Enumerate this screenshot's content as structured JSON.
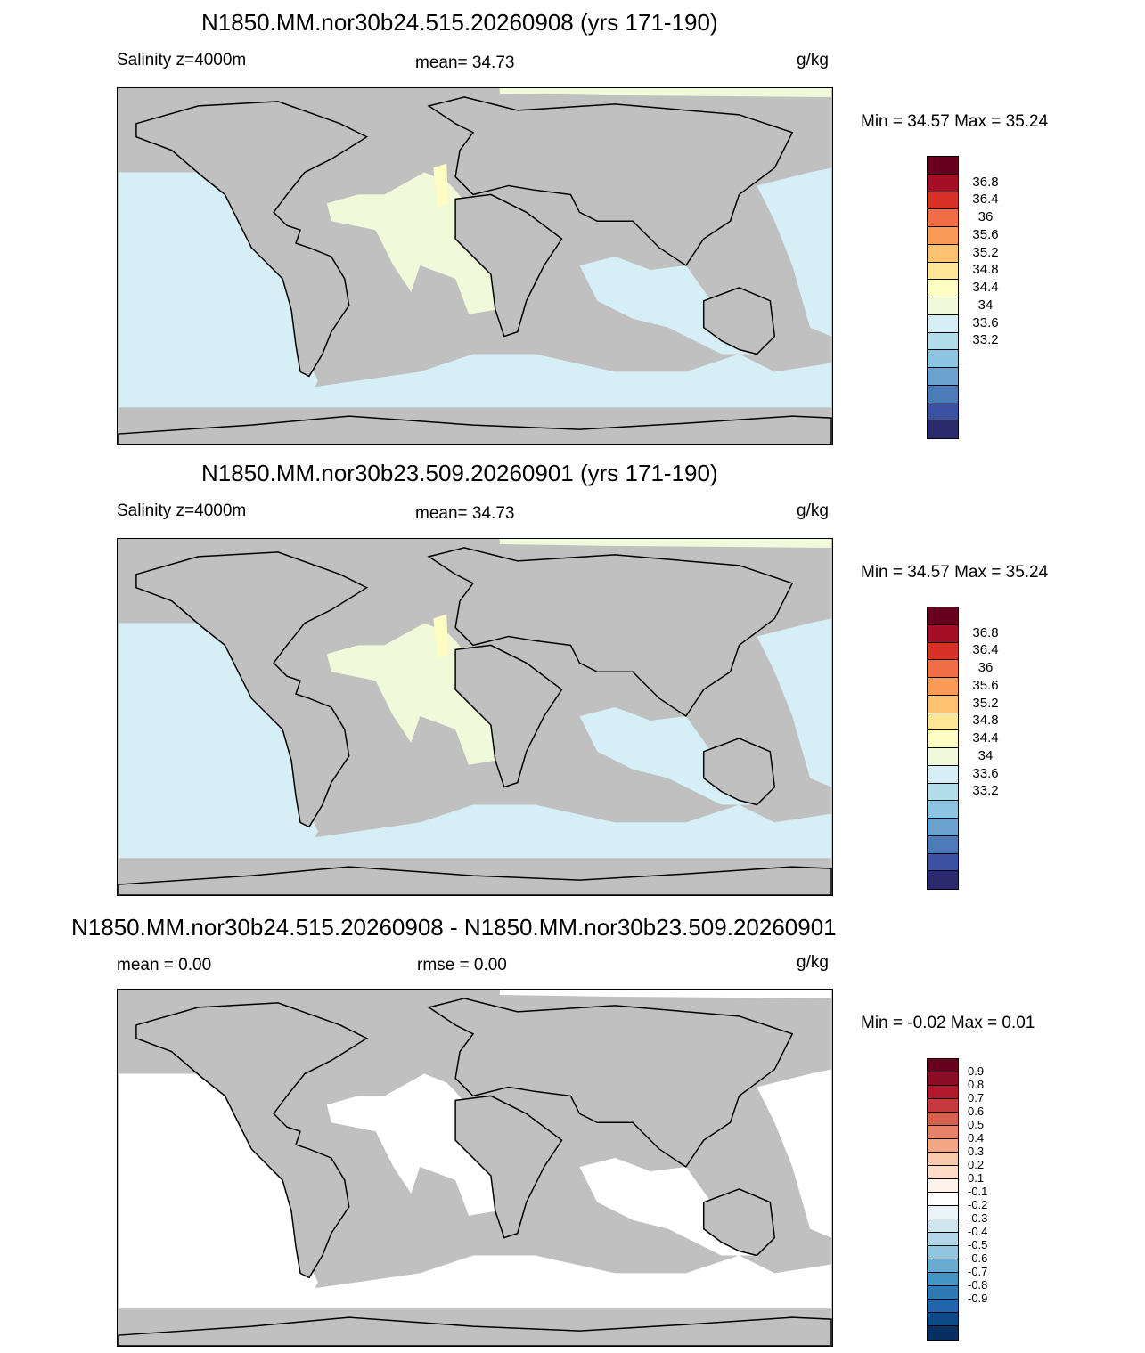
{
  "panels": [
    {
      "title": "N1850.MM.nor30b24.515.20260908 (yrs 171-190)",
      "left_label": "Salinity z=4000m",
      "center_label": "mean=  34.73",
      "units": "g/kg",
      "minmax": "Min =  34.57 Max =  35.24",
      "colorbar": {
        "colors": [
          "#67001f",
          "#a50f26",
          "#d63027",
          "#ef6e46",
          "#fa9a58",
          "#fdc171",
          "#fee597",
          "#fcfcc3",
          "#f1f9db",
          "#d6eef5",
          "#b4ddec",
          "#8dc4e1",
          "#6ba1cd",
          "#4c7bb8",
          "#3b52a0",
          "#2c2a6f"
        ],
        "labels": [
          "36.8",
          "36.4",
          "36",
          "35.6",
          "35.2",
          "34.8",
          "34.4",
          "34",
          "33.6",
          "33.2"
        ]
      }
    },
    {
      "title": "N1850.MM.nor30b23.509.20260901 (yrs 171-190)",
      "left_label": "Salinity z=4000m",
      "center_label": "mean=  34.73",
      "units": "g/kg",
      "minmax": "Min =  34.57 Max =  35.24",
      "colorbar": {
        "colors": [
          "#67001f",
          "#a50f26",
          "#d63027",
          "#ef6e46",
          "#fa9a58",
          "#fdc171",
          "#fee597",
          "#fcfcc3",
          "#f1f9db",
          "#d6eef5",
          "#b4ddec",
          "#8dc4e1",
          "#6ba1cd",
          "#4c7bb8",
          "#3b52a0",
          "#2c2a6f"
        ],
        "labels": [
          "36.8",
          "36.4",
          "36",
          "35.6",
          "35.2",
          "34.8",
          "34.4",
          "34",
          "33.6",
          "33.2"
        ]
      }
    },
    {
      "title": "N1850.MM.nor30b24.515.20260908 - N1850.MM.nor30b23.509.20260901",
      "left_label": "mean =   0.00",
      "center_label": "rmse =   0.00",
      "units": "g/kg",
      "minmax": "Min =  -0.02 Max =   0.01",
      "colorbar": {
        "colors": [
          "#67001f",
          "#8c0d25",
          "#b2182b",
          "#c53a3f",
          "#d6604d",
          "#e58267",
          "#f4a582",
          "#f9c9ad",
          "#fddbc7",
          "#fef2ea",
          "#ffffff",
          "#eaf3f8",
          "#d1e5f0",
          "#b4d6e8",
          "#92c5de",
          "#6aabd0",
          "#4393c3",
          "#2f79b5",
          "#2166ac",
          "#0d4a87",
          "#053061"
        ],
        "labels": [
          "0.9",
          "0.8",
          "0.7",
          "0.6",
          "0.5",
          "0.4",
          "0.3",
          "0.2",
          "0.1",
          "-0.1",
          "-0.2",
          "-0.3",
          "-0.4",
          "-0.5",
          "-0.6",
          "-0.7",
          "-0.8",
          "-0.9"
        ]
      }
    }
  ]
}
